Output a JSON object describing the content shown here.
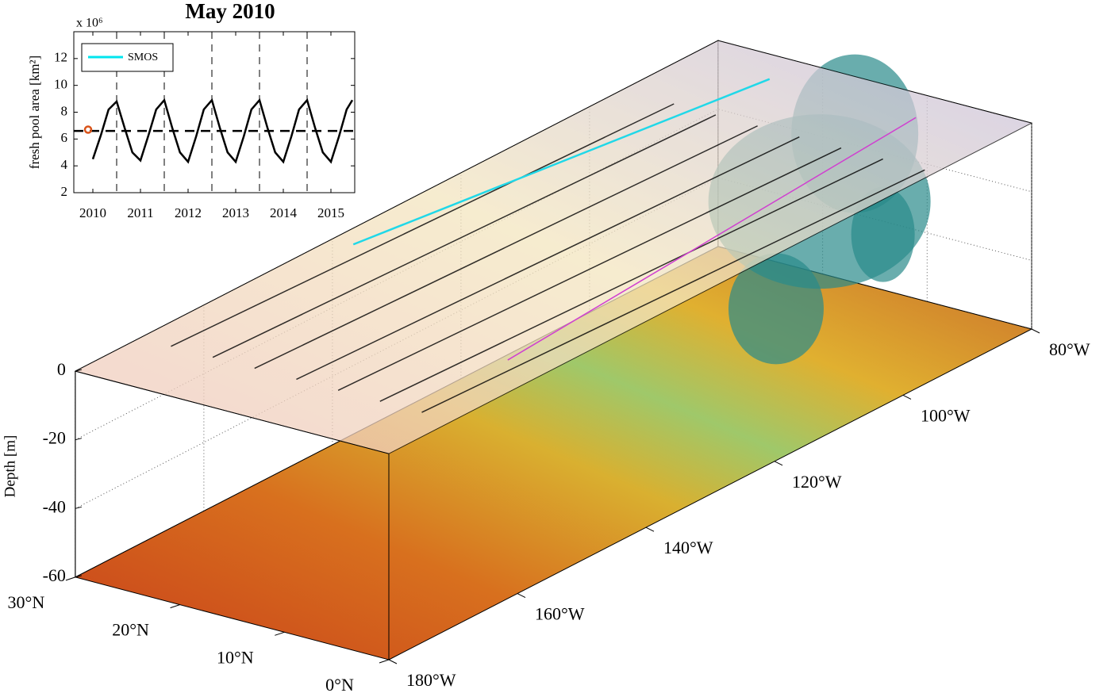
{
  "chart_data": [
    {
      "type": "line",
      "title": "May 2010",
      "ylabel": "fresh pool area [km²]",
      "multiplier": "x 10⁶",
      "xlim": [
        2009.6,
        2015.5
      ],
      "ylim": [
        2,
        14
      ],
      "xticks": [
        2010,
        2011,
        2012,
        2013,
        2014,
        2015
      ],
      "yticks": [
        2,
        4,
        6,
        8,
        10,
        12
      ],
      "x": [
        2010,
        2010.17,
        2010.33,
        2010.5,
        2010.67,
        2010.83,
        2011,
        2011.17,
        2011.33,
        2011.5,
        2011.67,
        2011.83,
        2012,
        2012.17,
        2012.33,
        2012.5,
        2012.67,
        2012.83,
        2013,
        2013.17,
        2013.33,
        2013.5,
        2013.67,
        2013.83,
        2014,
        2014.17,
        2014.33,
        2014.5,
        2014.67,
        2014.83,
        2015,
        2015.17,
        2015.33,
        2015.45
      ],
      "series": [
        {
          "name": "SMOS",
          "color": "#00e5ee",
          "values": [
            4.5,
            6.3,
            8.2,
            8.8,
            6.8,
            5.0,
            4.4,
            6.3,
            8.2,
            8.9,
            6.8,
            5.0,
            4.3,
            6.2,
            8.2,
            8.9,
            6.8,
            5.0,
            4.3,
            6.2,
            8.2,
            8.9,
            6.8,
            5.0,
            4.3,
            6.2,
            8.2,
            8.9,
            6.8,
            5.0,
            4.3,
            6.2,
            8.2,
            8.9
          ]
        }
      ],
      "line_color": "#000000",
      "reference_y": 6.6,
      "vlines": [
        2010.5,
        2011.5,
        2012.5,
        2013.5,
        2014.5
      ],
      "marker": {
        "x": 2009.9,
        "y": 6.7,
        "color": "#d9541a"
      },
      "legend": "upper left"
    },
    {
      "type": "volume3d",
      "zlabel": "Depth [m]",
      "xlim": [
        -180,
        -80
      ],
      "ylim": [
        0,
        30
      ],
      "zlim": [
        -60,
        0
      ],
      "xticks": [
        {
          "value": -180,
          "label": "180°W"
        },
        {
          "value": -160,
          "label": "160°W"
        },
        {
          "value": -140,
          "label": "140°W"
        },
        {
          "value": -120,
          "label": "120°W"
        },
        {
          "value": -100,
          "label": "100°W"
        },
        {
          "value": -80,
          "label": "80°W"
        }
      ],
      "yticks": [
        {
          "value": 0,
          "label": "0°N"
        },
        {
          "value": 10,
          "label": "10°N"
        },
        {
          "value": 20,
          "label": "20°N"
        },
        {
          "value": 30,
          "label": "30°N"
        }
      ],
      "zticks": [
        0,
        -20,
        -40,
        -60
      ],
      "grid": true
    }
  ]
}
